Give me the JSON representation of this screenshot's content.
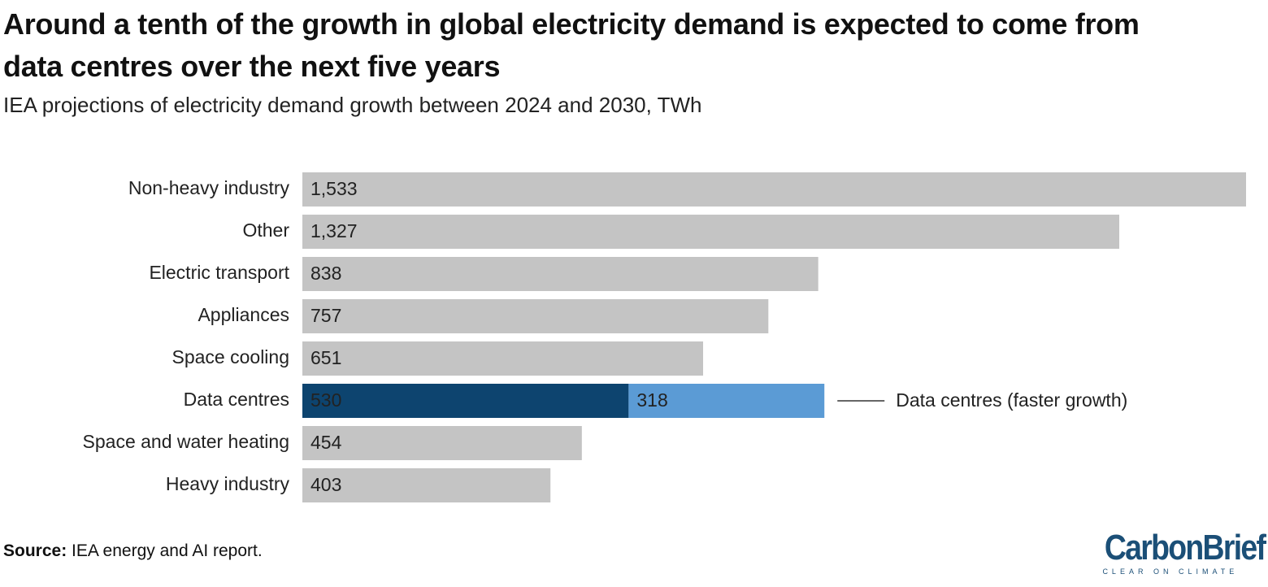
{
  "chart_data": {
    "type": "hbar-stacked",
    "title": "Around a tenth of the growth in global electricity demand is expected to come from data centres over the next five years",
    "subtitle": "IEA projections of electricity demand growth between 2024 and 2030, TWh",
    "categories": [
      "Non-heavy industry",
      "Other",
      "Electric transport",
      "Appliances",
      "Space cooling",
      "Data centres",
      "Space and water heating",
      "Heavy industry"
    ],
    "xlim": [
      0,
      1533
    ],
    "series": [
      {
        "colors": [
          "#c4c4c4",
          "#c4c4c4",
          "#c4c4c4",
          "#c4c4c4",
          "#c4c4c4",
          "#0d446f",
          "#c4c4c4",
          "#c4c4c4"
        ],
        "label_colors": [
          "#333333",
          "#333333",
          "#333333",
          "#333333",
          "#333333",
          "#ffffff",
          "#333333",
          "#333333"
        ],
        "values": [
          1533,
          1327,
          838,
          757,
          651,
          530,
          454,
          403
        ],
        "value_labels": [
          "1,533",
          "1,327",
          "838",
          "757",
          "651",
          "530",
          "454",
          "403"
        ]
      },
      {
        "name": "Data centres (faster growth)",
        "color": "#5b9bd5",
        "label_color": "#ffffff",
        "values": [
          null,
          null,
          null,
          null,
          null,
          318,
          null,
          null
        ]
      }
    ],
    "source_label": "Source:",
    "source": "IEA energy and AI report.",
    "logo": {
      "name": "CarbonBrief",
      "tagline": "CLEAR ON CLIMATE"
    }
  }
}
